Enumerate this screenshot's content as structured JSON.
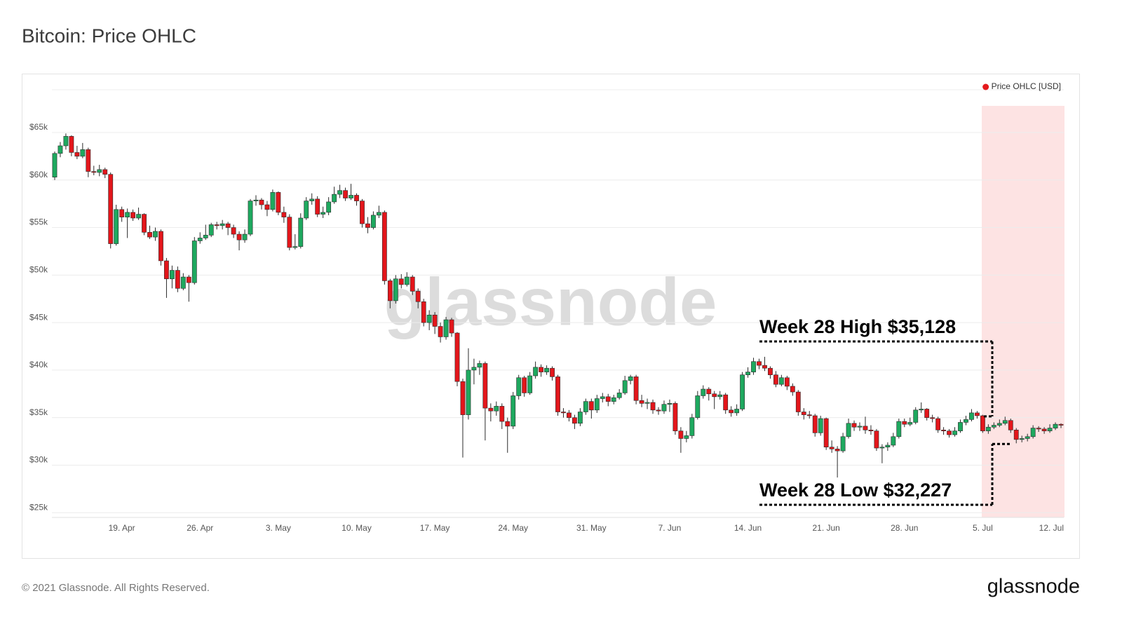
{
  "chart_data": {
    "type": "candlestick",
    "title": "Bitcoin: Price OHLC",
    "legend": {
      "label": "Price OHLC [USD]",
      "color": "#e41a1c",
      "position": "top-right"
    },
    "up_color": "#1ea95f",
    "down_color": "#e3161b",
    "grid": true,
    "ylim": [
      24500,
      69500
    ],
    "yticks": [
      {
        "value": 25000,
        "label": "$25k"
      },
      {
        "value": 30000,
        "label": "$30k"
      },
      {
        "value": 35000,
        "label": "$35k"
      },
      {
        "value": 40000,
        "label": "$40k"
      },
      {
        "value": 45000,
        "label": "$45k"
      },
      {
        "value": 50000,
        "label": "$50k"
      },
      {
        "value": 55000,
        "label": "$55k"
      },
      {
        "value": 60000,
        "label": "$60k"
      },
      {
        "value": 65000,
        "label": "$65k"
      }
    ],
    "categories": [
      null,
      null,
      null,
      null,
      null,
      null,
      null,
      null,
      null,
      null,
      null,
      null,
      "19. Apr",
      null,
      null,
      null,
      null,
      null,
      null,
      null,
      null,
      null,
      null,
      null,
      null,
      null,
      "26. Apr",
      null,
      null,
      null,
      null,
      null,
      null,
      null,
      null,
      null,
      null,
      null,
      null,
      null,
      "3. May",
      null,
      null,
      null,
      null,
      null,
      null,
      null,
      null,
      null,
      null,
      null,
      null,
      null,
      "10. May",
      null,
      null,
      null,
      null,
      null,
      null,
      null,
      null,
      null,
      null,
      null,
      null,
      null,
      "17. May",
      null,
      null,
      null,
      null,
      null,
      null,
      null,
      null,
      null,
      null,
      null,
      null,
      null,
      "24. May",
      null,
      null,
      null,
      null,
      null,
      null,
      null,
      null,
      null,
      null,
      null,
      null,
      null,
      "31. May",
      null,
      null,
      null,
      null,
      null,
      null,
      null,
      null,
      null,
      null,
      null,
      null,
      null,
      "7. Jun",
      null,
      null,
      null,
      null,
      null,
      null,
      null,
      null,
      null,
      null,
      null,
      null,
      null,
      "14. Jun",
      null,
      null,
      null,
      null,
      null,
      null,
      null,
      null,
      null,
      null,
      null,
      null,
      null,
      "21. Jun",
      null,
      null,
      null,
      null,
      null,
      null,
      null,
      null,
      null,
      null,
      null,
      null,
      null,
      "28. Jun",
      null,
      null,
      null,
      null,
      null,
      null,
      null,
      null,
      null,
      null,
      null,
      null,
      null,
      "5. Jul",
      null,
      null,
      null,
      null,
      null,
      null,
      null,
      null,
      null,
      null,
      null,
      null,
      null,
      "12. Jul"
    ],
    "open": [
      60300,
      62800,
      63600,
      64600,
      62900,
      62500,
      63200,
      60900,
      60800,
      61100,
      60600,
      53300,
      56900,
      56100,
      56600,
      56000,
      56400,
      54500,
      54000,
      54600,
      51500,
      49600,
      50500,
      48600,
      49800,
      49200,
      53600,
      53900,
      54200,
      55300,
      55200,
      55400,
      55000,
      54300,
      53700,
      54300,
      57800,
      57900,
      57400,
      56900,
      58700,
      56600,
      56100,
      52900,
      53000,
      56000,
      57800,
      58000,
      56400,
      56600,
      57700,
      58500,
      58900,
      58100,
      58400,
      57800,
      55400,
      55000,
      56300,
      56600,
      49400,
      47300,
      49600,
      49000,
      49800,
      48300,
      47200,
      45000,
      45800,
      44600,
      43500,
      45300,
      43900,
      38800,
      35300,
      40000,
      40300,
      40700,
      36000,
      35700,
      36200,
      34600,
      34100,
      37300,
      39200,
      37600,
      39400,
      40300,
      39800,
      40200,
      39300,
      35600,
      35500,
      35000,
      34400,
      35600,
      36700,
      35800,
      37000,
      37200,
      36700,
      37100,
      37600,
      38900,
      39300,
      36800,
      36500,
      36600,
      35800,
      35700,
      36400,
      36500,
      33600,
      32800,
      33100,
      35000,
      37300,
      38000,
      37500,
      37200,
      37400,
      35800,
      35500,
      35900,
      39500,
      39800,
      40900,
      40500,
      40200,
      39500,
      38500,
      39200,
      38300,
      37700,
      35600,
      35300,
      35200,
      33400,
      34900,
      31900,
      31700,
      31500,
      33000,
      34400,
      34000,
      34100,
      33700,
      33600,
      31800,
      31900,
      32100,
      33000,
      34600,
      34300,
      34500,
      35800,
      35900,
      35000,
      34900,
      33700,
      33600,
      33200,
      33600,
      34500,
      34800,
      35500,
      35200,
      33600,
      34000,
      34200,
      34400,
      34700,
      33700,
      32700,
      32800,
      33000,
      33900,
      33800,
      33600,
      33900,
      34300
    ],
    "high": [
      63000,
      64000,
      64900,
      64700,
      63600,
      63900,
      63400,
      61500,
      61600,
      61300,
      60800,
      57400,
      57200,
      57000,
      56900,
      57100,
      56500,
      55200,
      55000,
      54800,
      51800,
      51000,
      50900,
      50200,
      50000,
      54000,
      54500,
      55300,
      55500,
      55600,
      55800,
      55600,
      55300,
      54600,
      54800,
      58000,
      58400,
      58100,
      57800,
      59000,
      58800,
      57200,
      56400,
      54300,
      56500,
      58200,
      58600,
      58300,
      57200,
      58200,
      59300,
      59500,
      59200,
      59600,
      58600,
      58000,
      56100,
      56700,
      57300,
      56800,
      49600,
      50000,
      50100,
      50300,
      50000,
      48600,
      47500,
      46300,
      46100,
      45000,
      45600,
      45500,
      44000,
      39100,
      42300,
      41200,
      41000,
      40900,
      36500,
      36700,
      36500,
      35000,
      37700,
      39500,
      39400,
      39800,
      40900,
      40600,
      40500,
      40400,
      39500,
      36000,
      35800,
      35300,
      36000,
      37000,
      37000,
      37400,
      37600,
      37500,
      37400,
      38000,
      39400,
      39500,
      39500,
      37400,
      37000,
      36900,
      36100,
      36800,
      36900,
      36700,
      34000,
      33600,
      35400,
      37800,
      38400,
      38200,
      37800,
      37800,
      37600,
      36200,
      36400,
      39800,
      40300,
      41300,
      41200,
      41400,
      40400,
      39900,
      39500,
      39400,
      38600,
      37900,
      36000,
      35700,
      35400,
      35200,
      35000,
      32600,
      32000,
      33400,
      34900,
      34700,
      34500,
      35100,
      34200,
      33800,
      32200,
      32400,
      33400,
      34900,
      34900,
      35000,
      36100,
      36600,
      36000,
      35300,
      35100,
      34000,
      33800,
      34000,
      34800,
      35200,
      35900,
      35700,
      35300,
      34300,
      34500,
      34800,
      35100,
      34900,
      33900,
      33100,
      33300,
      34200,
      34100,
      34000,
      34300,
      34500,
      34400
    ],
    "low": [
      60000,
      62400,
      63200,
      62500,
      62200,
      62300,
      60300,
      60500,
      60400,
      60200,
      52800,
      53100,
      55600,
      53900,
      55700,
      55800,
      54200,
      53800,
      53600,
      51000,
      47600,
      48600,
      48200,
      48400,
      47200,
      49000,
      53300,
      53700,
      54000,
      54800,
      54800,
      54200,
      53900,
      52600,
      53400,
      54100,
      57300,
      56900,
      56200,
      56700,
      56300,
      55500,
      52600,
      52700,
      52800,
      55800,
      57400,
      56100,
      56000,
      56300,
      57500,
      58100,
      57800,
      57900,
      57300,
      55000,
      54400,
      54800,
      56000,
      49000,
      46500,
      47000,
      48600,
      48800,
      47900,
      46500,
      44600,
      44200,
      43800,
      42900,
      43200,
      43500,
      38300,
      30800,
      34800,
      38500,
      39500,
      32600,
      34600,
      35200,
      33800,
      31300,
      33800,
      36900,
      37200,
      37400,
      39100,
      39300,
      39500,
      38900,
      35200,
      35000,
      34600,
      33800,
      34100,
      35300,
      34900,
      35500,
      36600,
      36200,
      36400,
      36900,
      37400,
      38500,
      36400,
      36100,
      35900,
      35400,
      35300,
      35400,
      35600,
      33200,
      31300,
      32400,
      32800,
      34800,
      37000,
      36800,
      35900,
      36900,
      35400,
      35100,
      35200,
      35700,
      39200,
      39500,
      40100,
      39900,
      39100,
      38200,
      38300,
      37900,
      37300,
      35200,
      34800,
      34900,
      33000,
      33100,
      31600,
      31300,
      28700,
      31300,
      32800,
      33600,
      33600,
      33300,
      33200,
      31500,
      30200,
      31500,
      31900,
      32800,
      34000,
      34100,
      34300,
      35500,
      34700,
      34500,
      33400,
      33200,
      32900,
      33000,
      33400,
      34200,
      34600,
      34900,
      33400,
      33300,
      33800,
      34000,
      34200,
      33400,
      32300,
      32400,
      32500,
      32800,
      33500,
      33300,
      33400,
      33700,
      33900
    ],
    "close": [
      62800,
      63600,
      64600,
      62900,
      62500,
      63200,
      60900,
      60800,
      61100,
      60600,
      53300,
      56900,
      56100,
      56600,
      56000,
      56400,
      54500,
      54000,
      54600,
      51500,
      49600,
      50500,
      48600,
      49800,
      49200,
      53600,
      53900,
      54200,
      55300,
      55200,
      55400,
      55000,
      54300,
      53700,
      54300,
      57800,
      57900,
      57400,
      56900,
      58700,
      56600,
      56100,
      52900,
      53000,
      56000,
      57800,
      58000,
      56400,
      56600,
      57700,
      58500,
      58900,
      58100,
      58400,
      57800,
      55400,
      55000,
      56300,
      56600,
      49400,
      47300,
      49600,
      49000,
      49800,
      48300,
      47200,
      45000,
      45800,
      44600,
      43500,
      45300,
      43900,
      38800,
      35300,
      40000,
      40300,
      40700,
      36000,
      35700,
      36200,
      34600,
      34100,
      37300,
      39200,
      37600,
      39400,
      40300,
      39800,
      40200,
      39300,
      35600,
      35500,
      35000,
      34400,
      35600,
      36700,
      35800,
      37000,
      37200,
      36700,
      37100,
      37600,
      38900,
      39300,
      36800,
      36500,
      36600,
      35800,
      35700,
      36400,
      36500,
      33600,
      32800,
      33100,
      35000,
      37300,
      38000,
      37500,
      37200,
      37400,
      35800,
      35500,
      35900,
      39500,
      39800,
      40900,
      40500,
      40200,
      39500,
      38500,
      39200,
      38300,
      37700,
      35600,
      35300,
      35200,
      33400,
      34900,
      31900,
      31700,
      31500,
      33000,
      34400,
      34000,
      34100,
      33700,
      33600,
      31800,
      31900,
      32100,
      33000,
      34600,
      34300,
      34500,
      35800,
      35900,
      35000,
      34900,
      33700,
      33600,
      33200,
      33600,
      34500,
      34800,
      35500,
      35200,
      33600,
      34000,
      34200,
      34400,
      34700,
      33700,
      32700,
      32800,
      33000,
      33900,
      33800,
      33600,
      33900,
      34300,
      34200
    ],
    "annotations": [
      {
        "text": "Week 28 High $35,128",
        "value": 35128
      },
      {
        "text": "Week 28 Low $32,227",
        "value": 32227
      }
    ]
  },
  "watermark": "glassnode",
  "footer": "© 2021 Glassnode. All Rights Reserved.",
  "logo": "glassnode"
}
